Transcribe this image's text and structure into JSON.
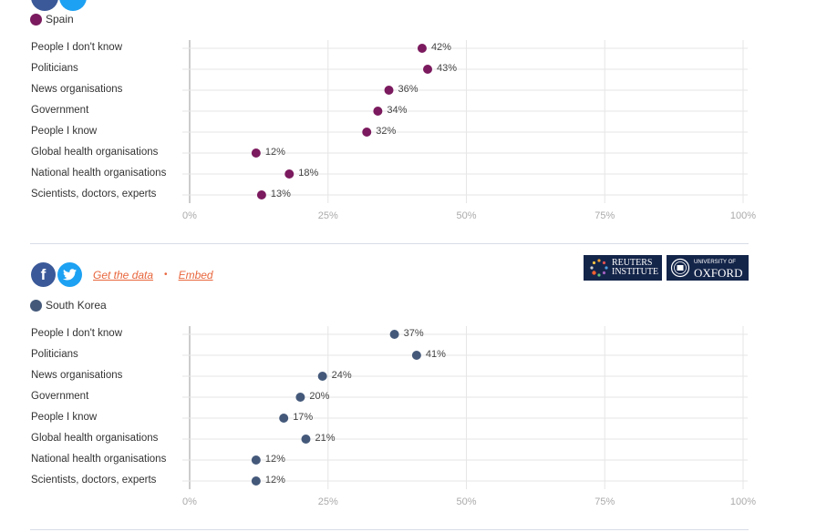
{
  "share": {
    "facebook_icon": "facebook-icon",
    "twitter_icon": "twitter-icon",
    "get_data_label": "Get the data",
    "separator": "•",
    "embed_label": "Embed"
  },
  "logos": {
    "reuters_line1": "REUTERS",
    "reuters_line2": "INSTITUTE",
    "oxford_line1": "UNIVERSITY OF",
    "oxford_line2": "OXFORD"
  },
  "colors": {
    "spain": "#7b1a5e",
    "south_korea": "#44597a",
    "link": "#e8663d",
    "facebook": "#3b5998",
    "twitter": "#1da1f2",
    "logo_bg": "#14254a"
  },
  "chart_data": [
    {
      "type": "scatter",
      "subtype": "dot-plot",
      "title": "",
      "legend": "Spain",
      "legend_position": "top-left",
      "categories": [
        "People I don't know",
        "Politicians",
        "News organisations",
        "Government",
        "People I know",
        "Global health organisations",
        "National health organisations",
        "Scientists, doctors, experts"
      ],
      "values": [
        42,
        43,
        36,
        34,
        32,
        12,
        18,
        13
      ],
      "value_labels": [
        "42%",
        "43%",
        "36%",
        "34%",
        "32%",
        "12%",
        "18%",
        "13%"
      ],
      "x_ticks": [
        "0%",
        "25%",
        "50%",
        "75%",
        "100%"
      ],
      "xlim": [
        0,
        100
      ],
      "grid": true,
      "xlabel": "",
      "ylabel": ""
    },
    {
      "type": "scatter",
      "subtype": "dot-plot",
      "title": "",
      "legend": "South Korea",
      "legend_position": "top-left",
      "categories": [
        "People I don't know",
        "Politicians",
        "News organisations",
        "Government",
        "People I know",
        "Global health organisations",
        "National health organisations",
        "Scientists, doctors, experts"
      ],
      "values": [
        37,
        41,
        24,
        20,
        17,
        21,
        12,
        12
      ],
      "value_labels": [
        "37%",
        "41%",
        "24%",
        "20%",
        "17%",
        "21%",
        "12%",
        "12%"
      ],
      "x_ticks": [
        "0%",
        "25%",
        "50%",
        "75%",
        "100%"
      ],
      "xlim": [
        0,
        100
      ],
      "grid": true,
      "xlabel": "",
      "ylabel": ""
    }
  ]
}
